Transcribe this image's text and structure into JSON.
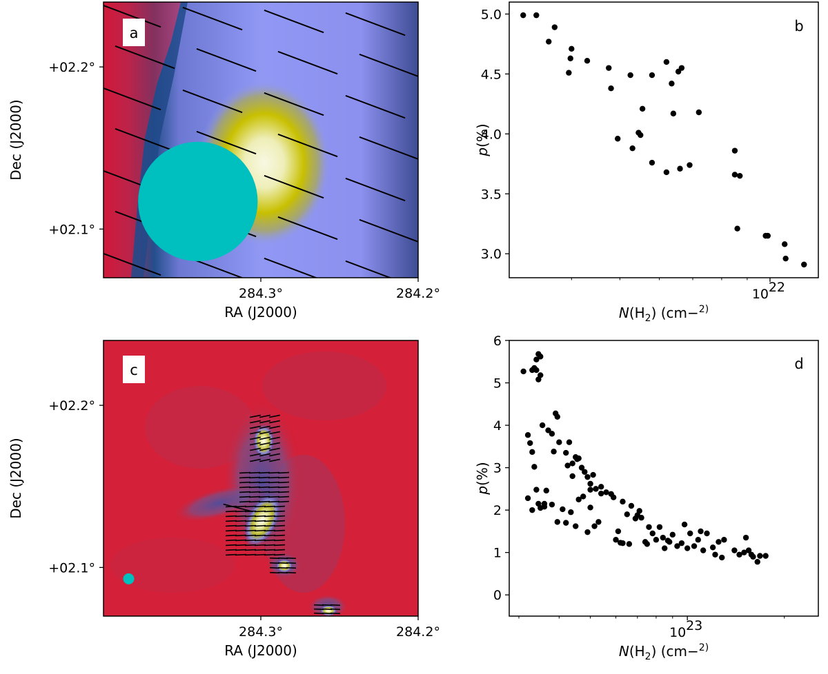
{
  "chart_data": [
    {
      "panel": "a",
      "type": "heatmap",
      "xlabel": "RA (J2000)",
      "ylabel": "Dec (J2000)",
      "x_ticks": [
        "284.3°",
        "284.2°"
      ],
      "y_ticks": [
        "+02.2°",
        "+02.1°"
      ],
      "x_tick_values": [
        284.3,
        284.2
      ],
      "y_tick_values": [
        2.2,
        2.1
      ],
      "xlim": [
        284.4,
        284.2
      ],
      "ylim": [
        2.07,
        2.24
      ],
      "beam": {
        "ra": 284.34,
        "dec": 2.117,
        "diameter_deg": 0.076,
        "color": "#00BFBF"
      },
      "core": {
        "ra": 284.285,
        "dec": 2.15
      },
      "colors": {
        "background": "#8C93F0",
        "edge_red": "#D2193A",
        "core": "#F5F5D8",
        "halo": "#C8C000"
      }
    },
    {
      "panel": "b",
      "type": "scatter",
      "xlabel": "N(H2) (cm−2)",
      "ylabel": "p(%)",
      "x_scale": "log",
      "x_ticks": [
        "10^22"
      ],
      "y_ticks": [
        "3.0",
        "3.5",
        "4.0",
        "4.5",
        "5.0"
      ],
      "y_tick_values": [
        3.0,
        3.5,
        4.0,
        4.5,
        5.0
      ],
      "xlim": [
        3e+21,
        1.25e+22
      ],
      "ylim": [
        2.8,
        5.1
      ],
      "points": [
        [
          3.2e+21,
          4.99
        ],
        [
          3.4e+21,
          4.99
        ],
        [
          3.6e+21,
          4.77
        ],
        [
          3.7e+21,
          4.89
        ],
        [
          3.95e+21,
          4.51
        ],
        [
          3.98e+21,
          4.63
        ],
        [
          4e+21,
          4.71
        ],
        [
          4.3e+21,
          4.61
        ],
        [
          4.75e+21,
          4.55
        ],
        [
          4.8e+21,
          4.38
        ],
        [
          4.95e+21,
          3.96
        ],
        [
          5.3e+21,
          3.88
        ],
        [
          5.45e+21,
          4.01
        ],
        [
          5.5e+21,
          3.99
        ],
        [
          5.55e+21,
          4.21
        ],
        [
          5.25e+21,
          4.49
        ],
        [
          5.8e+21,
          4.49
        ],
        [
          5.8e+21,
          3.76
        ],
        [
          6.2e+21,
          3.68
        ],
        [
          6.2e+21,
          4.6
        ],
        [
          6.35e+21,
          4.42
        ],
        [
          6.4e+21,
          4.17
        ],
        [
          6.55e+21,
          4.52
        ],
        [
          6.6e+21,
          3.71
        ],
        [
          6.65e+21,
          4.55
        ],
        [
          6.9e+21,
          3.74
        ],
        [
          7.2e+21,
          4.18
        ],
        [
          8.5e+21,
          3.86
        ],
        [
          8.5e+21,
          3.66
        ],
        [
          8.7e+21,
          3.65
        ],
        [
          8.6e+21,
          3.21
        ],
        [
          9.8e+21,
          3.15
        ],
        [
          9.9e+21,
          3.15
        ],
        [
          1.07e+22,
          3.08
        ],
        [
          1.075e+22,
          2.96
        ],
        [
          1.17e+22,
          2.91
        ]
      ]
    },
    {
      "panel": "c",
      "type": "heatmap",
      "xlabel": "RA (J2000)",
      "ylabel": "Dec (J2000)",
      "x_ticks": [
        "284.3°",
        "284.2°"
      ],
      "y_ticks": [
        "+02.2°",
        "+02.1°"
      ],
      "x_tick_values": [
        284.3,
        284.2
      ],
      "y_tick_values": [
        2.2,
        2.1
      ],
      "xlim": [
        284.4,
        284.2
      ],
      "ylim": [
        2.07,
        2.24
      ],
      "beam": {
        "ra": 284.384,
        "dec": 2.093,
        "diameter_deg": 0.007,
        "color": "#00BFBF"
      },
      "sources": [
        {
          "ra": 284.301,
          "dec": 2.187
        },
        {
          "ra": 284.297,
          "dec": 2.133
        },
        {
          "ra": 284.289,
          "dec": 2.119
        },
        {
          "ra": 284.282,
          "dec": 2.105
        },
        {
          "ra": 284.262,
          "dec": 2.073
        }
      ],
      "colors": {
        "background": "#D42038",
        "filament": "#5A5AA8",
        "core": "#F8F8E0",
        "halo": "#C8C000"
      }
    },
    {
      "panel": "d",
      "type": "scatter",
      "xlabel": "N(H2) (cm−2)",
      "ylabel": "p(%)",
      "x_scale": "log",
      "x_ticks": [
        "10^23"
      ],
      "y_ticks": [
        "0",
        "1",
        "2",
        "3",
        "4",
        "5",
        "6"
      ],
      "y_tick_values": [
        0,
        1,
        2,
        3,
        4,
        5,
        6
      ],
      "xlim": [
        2.8e+22,
        2.55e+23
      ],
      "ylim": [
        -0.5,
        6.0
      ],
      "points": [
        [
          3.1e+22,
          5.27
        ],
        [
          3.3e+22,
          5.3
        ],
        [
          3.35e+22,
          5.35
        ],
        [
          3.4e+22,
          5.55
        ],
        [
          3.45e+22,
          5.68
        ],
        [
          3.5e+22,
          5.62
        ],
        [
          3.5e+22,
          5.18
        ],
        [
          3.45e+22,
          5.08
        ],
        [
          3.4e+22,
          5.3
        ],
        [
          3.2e+22,
          3.77
        ],
        [
          3.25e+22,
          3.58
        ],
        [
          3.3e+22,
          3.37
        ],
        [
          3.35e+22,
          3.02
        ],
        [
          3.4e+22,
          2.48
        ],
        [
          3.5e+22,
          2.05
        ],
        [
          3.6e+22,
          2.15
        ],
        [
          3.65e+22,
          2.46
        ],
        [
          3.55e+22,
          4.0
        ],
        [
          3.7e+22,
          3.88
        ],
        [
          3.8e+22,
          3.8
        ],
        [
          3.85e+22,
          3.38
        ],
        [
          3.9e+22,
          4.28
        ],
        [
          3.95e+22,
          4.2
        ],
        [
          4e+22,
          3.6
        ],
        [
          4.2e+22,
          3.35
        ],
        [
          4.3e+22,
          3.6
        ],
        [
          4.4e+22,
          3.1
        ],
        [
          4.5e+22,
          3.25
        ],
        [
          4.6e+22,
          3.22
        ],
        [
          4.7e+22,
          3.0
        ],
        [
          4.55e+22,
          3.2
        ],
        [
          4.8e+22,
          2.9
        ],
        [
          4.9e+22,
          2.78
        ],
        [
          5e+22,
          2.62
        ],
        [
          5.1e+22,
          2.83
        ],
        [
          5.2e+22,
          2.5
        ],
        [
          5.4e+22,
          2.55
        ],
        [
          3.2e+22,
          2.28
        ],
        [
          3.3e+22,
          2.0
        ],
        [
          3.45e+22,
          2.15
        ],
        [
          3.6e+22,
          2.08
        ],
        [
          3.8e+22,
          2.13
        ],
        [
          3.95e+22,
          1.72
        ],
        [
          4.1e+22,
          2.02
        ],
        [
          4.2e+22,
          1.7
        ],
        [
          4.35e+22,
          1.95
        ],
        [
          4.5e+22,
          1.62
        ],
        [
          4.6e+22,
          2.25
        ],
        [
          4.75e+22,
          2.32
        ],
        [
          4.9e+22,
          1.48
        ],
        [
          5e+22,
          2.48
        ],
        [
          5.15e+22,
          1.62
        ],
        [
          5.3e+22,
          1.72
        ],
        [
          5e+22,
          2.06
        ],
        [
          5.4e+22,
          2.39
        ],
        [
          5.6e+22,
          2.42
        ],
        [
          5.8e+22,
          2.38
        ],
        [
          5.9e+22,
          2.3
        ],
        [
          6e+22,
          1.3
        ],
        [
          6.1e+22,
          1.5
        ],
        [
          6.2e+22,
          1.23
        ],
        [
          6.3e+22,
          1.22
        ],
        [
          6.3e+22,
          2.2
        ],
        [
          6.5e+22,
          1.9
        ],
        [
          6.7e+22,
          2.1
        ],
        [
          6.9e+22,
          1.8
        ],
        [
          7e+22,
          1.88
        ],
        [
          7.1e+22,
          1.98
        ],
        [
          7.2e+22,
          1.82
        ],
        [
          7.4e+22,
          1.25
        ],
        [
          7.5e+22,
          1.2
        ],
        [
          7.6e+22,
          1.6
        ],
        [
          7.8e+22,
          1.45
        ],
        [
          8e+22,
          1.3
        ],
        [
          8.2e+22,
          1.6
        ],
        [
          8.4e+22,
          1.35
        ],
        [
          8.7e+22,
          1.28
        ],
        [
          8.8e+22,
          1.25
        ],
        [
          9e+22,
          1.42
        ],
        [
          9.3e+22,
          1.15
        ],
        [
          9.6e+22,
          1.22
        ],
        [
          9.8e+22,
          1.66
        ],
        [
          1e+23,
          1.1
        ],
        [
          1.02e+23,
          1.45
        ],
        [
          1.05e+23,
          1.15
        ],
        [
          1.08e+23,
          1.3
        ],
        [
          1.1e+23,
          1.5
        ],
        [
          1.12e+23,
          1.05
        ],
        [
          1.15e+23,
          1.45
        ],
        [
          1.2e+23,
          1.12
        ],
        [
          1.22e+23,
          0.95
        ],
        [
          1.25e+23,
          1.25
        ],
        [
          1.28e+23,
          0.88
        ],
        [
          1.3e+23,
          1.3
        ],
        [
          1.45e+23,
          0.95
        ],
        [
          1.5e+23,
          1.0
        ],
        [
          1.52e+23,
          1.35
        ],
        [
          1.55e+23,
          1.05
        ],
        [
          1.6e+23,
          0.9
        ],
        [
          1.65e+23,
          0.78
        ],
        [
          1.68e+23,
          0.92
        ],
        [
          1.75e+23,
          0.92
        ],
        [
          1.58e+23,
          0.95
        ],
        [
          1.4e+23,
          1.05
        ],
        [
          8.5e+22,
          1.1
        ],
        [
          6.6e+22,
          1.2
        ],
        [
          4.25e+22,
          3.05
        ],
        [
          4.4e+22,
          2.8
        ]
      ]
    }
  ]
}
